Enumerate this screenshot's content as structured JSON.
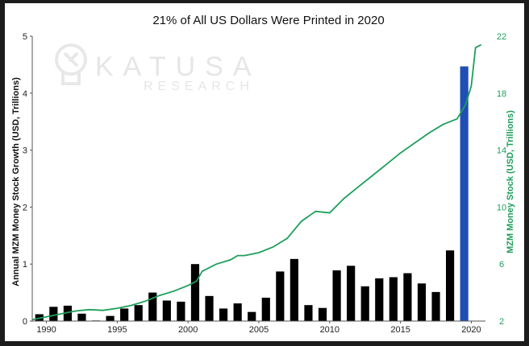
{
  "chart_data": {
    "type": "bar",
    "title": "21% of All US Dollars Were Printed in 2020",
    "ylabel": "Annual MZM Money Stock Growth (USD, Trillions)",
    "y2label": "MZM Money Stock (USD, Trillions)",
    "watermark": {
      "brand": "KATUSA",
      "sub": "RESEARCH"
    },
    "xlim": [
      1989,
      2021
    ],
    "ylim": [
      0,
      5
    ],
    "y2lim": [
      2,
      22
    ],
    "xticks": [
      "1990",
      "1995",
      "2000",
      "2005",
      "2010",
      "2015",
      "2020"
    ],
    "yticks": [
      "0",
      "1",
      "2",
      "3",
      "4",
      "5"
    ],
    "y2ticks": [
      "2",
      "6",
      "10",
      "14",
      "18",
      "22"
    ],
    "colors": {
      "bar": "#000000",
      "highlight_bar": "#1f4fb5",
      "line": "#1e9e5a"
    },
    "bars": [
      {
        "x": 1989.5,
        "value": 0.12
      },
      {
        "x": 1990.5,
        "value": 0.25
      },
      {
        "x": 1991.5,
        "value": 0.27
      },
      {
        "x": 1992.5,
        "value": 0.13
      },
      {
        "x": 1993.5,
        "value": 0.01
      },
      {
        "x": 1994.5,
        "value": 0.09
      },
      {
        "x": 1995.5,
        "value": 0.22
      },
      {
        "x": 1996.5,
        "value": 0.28
      },
      {
        "x": 1997.5,
        "value": 0.5
      },
      {
        "x": 1998.5,
        "value": 0.36
      },
      {
        "x": 1999.5,
        "value": 0.34
      },
      {
        "x": 2000.5,
        "value": 1.0
      },
      {
        "x": 2001.5,
        "value": 0.44
      },
      {
        "x": 2002.5,
        "value": 0.22
      },
      {
        "x": 2003.5,
        "value": 0.31
      },
      {
        "x": 2004.5,
        "value": 0.16
      },
      {
        "x": 2005.5,
        "value": 0.41
      },
      {
        "x": 2006.5,
        "value": 0.87
      },
      {
        "x": 2007.5,
        "value": 1.09
      },
      {
        "x": 2008.5,
        "value": 0.28
      },
      {
        "x": 2009.5,
        "value": 0.23
      },
      {
        "x": 2010.5,
        "value": 0.89
      },
      {
        "x": 2011.5,
        "value": 0.97
      },
      {
        "x": 2012.5,
        "value": 0.61
      },
      {
        "x": 2013.5,
        "value": 0.75
      },
      {
        "x": 2014.5,
        "value": 0.77
      },
      {
        "x": 2015.5,
        "value": 0.84
      },
      {
        "x": 2016.5,
        "value": 0.66
      },
      {
        "x": 2017.5,
        "value": 0.51
      },
      {
        "x": 2018.5,
        "value": 1.24
      },
      {
        "x": 2019.5,
        "value": 4.47,
        "highlight": true
      }
    ],
    "line": [
      [
        1989.0,
        2.1
      ],
      [
        1990.0,
        2.3
      ],
      [
        1991.0,
        2.5
      ],
      [
        1992.0,
        2.7
      ],
      [
        1993.0,
        2.8
      ],
      [
        1994.0,
        2.75
      ],
      [
        1995.0,
        2.9
      ],
      [
        1996.0,
        3.1
      ],
      [
        1997.0,
        3.4
      ],
      [
        1998.0,
        3.8
      ],
      [
        1999.0,
        4.1
      ],
      [
        2000.0,
        4.5
      ],
      [
        2000.6,
        4.8
      ],
      [
        2001.0,
        5.5
      ],
      [
        2002.0,
        6.0
      ],
      [
        2003.0,
        6.3
      ],
      [
        2003.5,
        6.6
      ],
      [
        2004.0,
        6.6
      ],
      [
        2005.0,
        6.8
      ],
      [
        2006.0,
        7.2
      ],
      [
        2007.0,
        7.8
      ],
      [
        2008.0,
        9.0
      ],
      [
        2009.0,
        9.7
      ],
      [
        2010.0,
        9.6
      ],
      [
        2011.0,
        10.6
      ],
      [
        2012.0,
        11.4
      ],
      [
        2013.0,
        12.2
      ],
      [
        2014.0,
        13.0
      ],
      [
        2015.0,
        13.8
      ],
      [
        2016.0,
        14.5
      ],
      [
        2017.0,
        15.2
      ],
      [
        2018.0,
        15.8
      ],
      [
        2019.0,
        16.2
      ],
      [
        2019.6,
        17.2
      ],
      [
        2020.0,
        18.5
      ],
      [
        2020.3,
        21.2
      ],
      [
        2020.7,
        21.4
      ]
    ]
  }
}
